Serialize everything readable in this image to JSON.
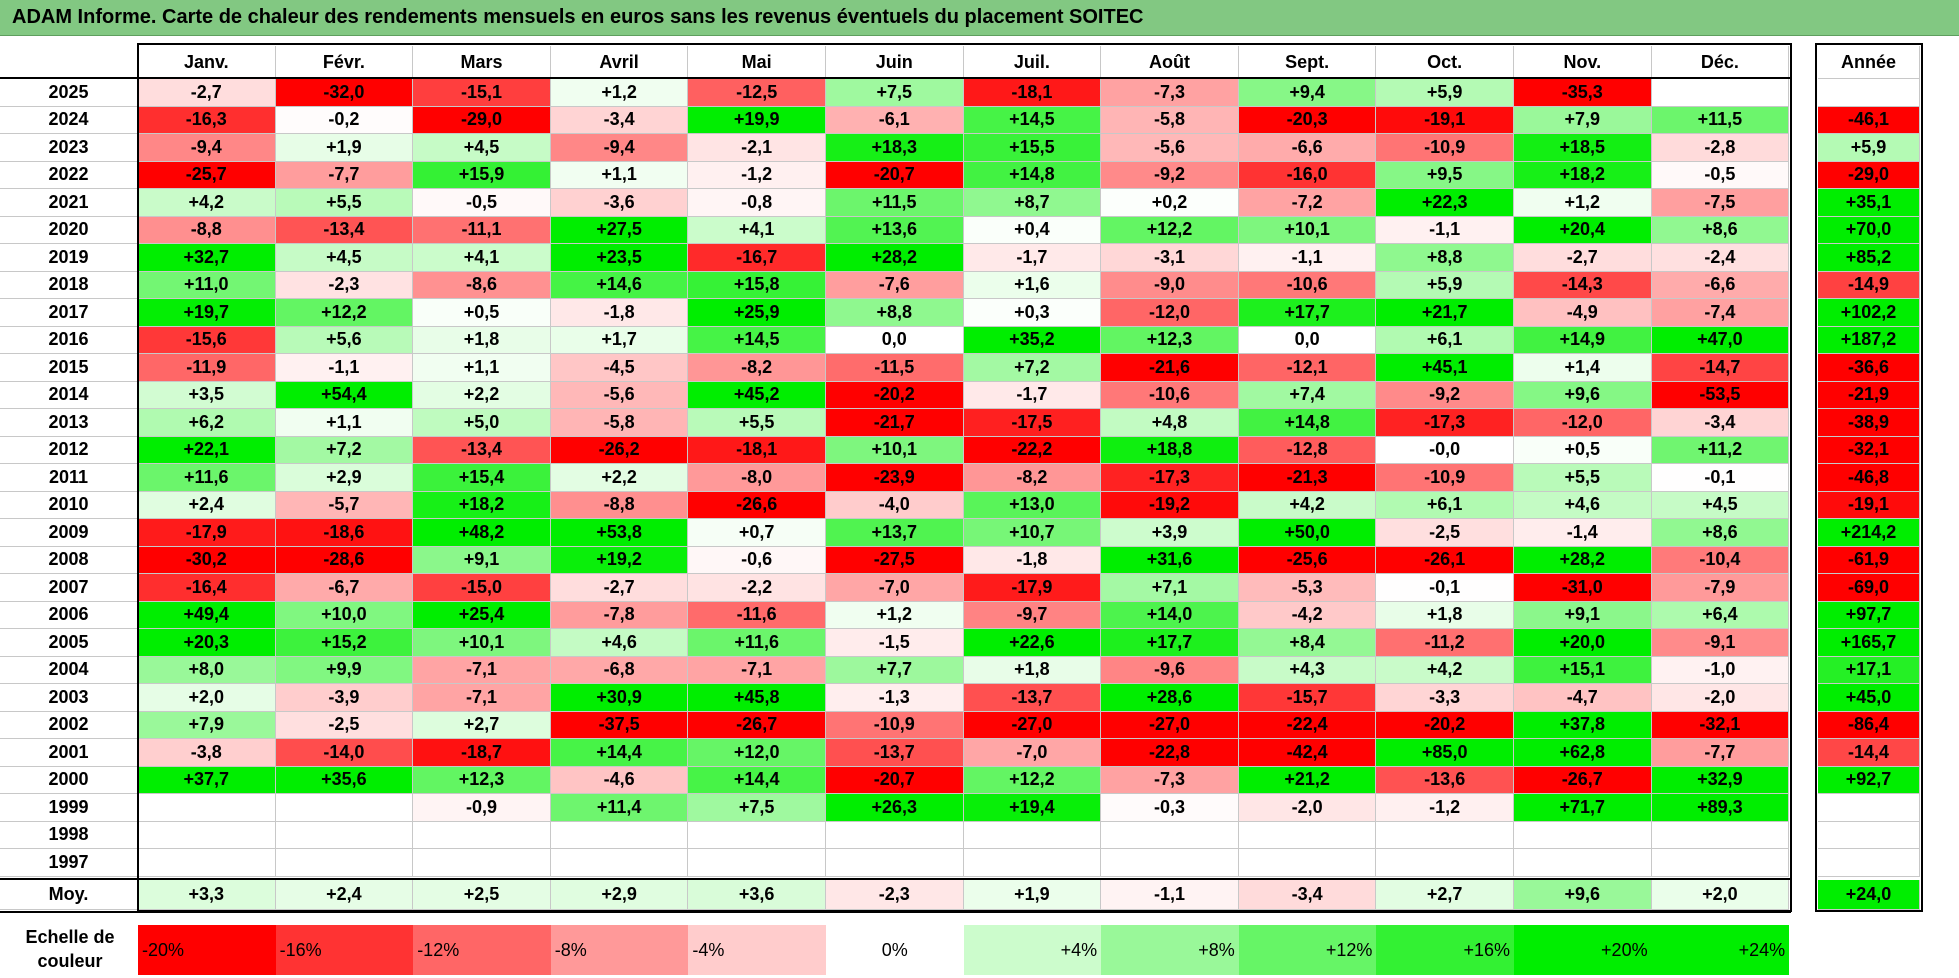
{
  "title": "ADAM Informe. Carte de chaleur des rendements mensuels en euros sans les revenus éventuels du placement SOITEC",
  "colors": {
    "title_bg": "#82c882",
    "neg_max": "#ff0000",
    "neutral": "#ffffff",
    "pos_max": "#00ee00"
  },
  "chart_data": {
    "type": "heatmap",
    "title": "ADAM Informe. Carte de chaleur des rendements mensuels en euros sans les revenus éventuels du placement SOITEC",
    "months": [
      "Janv.",
      "Févr.",
      "Mars",
      "Avril",
      "Mai",
      "Juin",
      "Juil.",
      "Août",
      "Sept.",
      "Oct.",
      "Nov.",
      "Déc."
    ],
    "annual_header": "Année",
    "rows": [
      {
        "year": "2025",
        "values": [
          "-2,7",
          "-32,0",
          "-15,1",
          "+1,2",
          "-12,5",
          "+7,5",
          "-18,1",
          "-7,3",
          "+9,4",
          "+5,9",
          "-35,3",
          ""
        ],
        "annual": ""
      },
      {
        "year": "2024",
        "values": [
          "-16,3",
          "-0,2",
          "-29,0",
          "-3,4",
          "+19,9",
          "-6,1",
          "+14,5",
          "-5,8",
          "-20,3",
          "-19,1",
          "+7,9",
          "+11,5"
        ],
        "annual": "-46,1"
      },
      {
        "year": "2023",
        "values": [
          "-9,4",
          "+1,9",
          "+4,5",
          "-9,4",
          "-2,1",
          "+18,3",
          "+15,5",
          "-5,6",
          "-6,6",
          "-10,9",
          "+18,5",
          "-2,8"
        ],
        "annual": "+5,9"
      },
      {
        "year": "2022",
        "values": [
          "-25,7",
          "-7,7",
          "+15,9",
          "+1,1",
          "-1,2",
          "-20,7",
          "+14,8",
          "-9,2",
          "-16,0",
          "+9,5",
          "+18,2",
          "-0,5"
        ],
        "annual": "-29,0"
      },
      {
        "year": "2021",
        "values": [
          "+4,2",
          "+5,5",
          "-0,5",
          "-3,6",
          "-0,8",
          "+11,5",
          "+8,7",
          "+0,2",
          "-7,2",
          "+22,3",
          "+1,2",
          "-7,5"
        ],
        "annual": "+35,1"
      },
      {
        "year": "2020",
        "values": [
          "-8,8",
          "-13,4",
          "-11,1",
          "+27,5",
          "+4,1",
          "+13,6",
          "+0,4",
          "+12,2",
          "+10,1",
          "-1,1",
          "+20,4",
          "+8,6"
        ],
        "annual": "+70,0"
      },
      {
        "year": "2019",
        "values": [
          "+32,7",
          "+4,5",
          "+4,1",
          "+23,5",
          "-16,7",
          "+28,2",
          "-1,7",
          "-3,1",
          "-1,1",
          "+8,8",
          "-2,7",
          "-2,4"
        ],
        "annual": "+85,2"
      },
      {
        "year": "2018",
        "values": [
          "+11,0",
          "-2,3",
          "-8,6",
          "+14,6",
          "+15,8",
          "-7,6",
          "+1,6",
          "-9,0",
          "-10,6",
          "+5,9",
          "-14,3",
          "-6,6"
        ],
        "annual": "-14,9"
      },
      {
        "year": "2017",
        "values": [
          "+19,7",
          "+12,2",
          "+0,5",
          "-1,8",
          "+25,9",
          "+8,8",
          "+0,3",
          "-12,0",
          "+17,7",
          "+21,7",
          "-4,9",
          "-7,4"
        ],
        "annual": "+102,2"
      },
      {
        "year": "2016",
        "values": [
          "-15,6",
          "+5,6",
          "+1,8",
          "+1,7",
          "+14,5",
          "0,0",
          "+35,2",
          "+12,3",
          "0,0",
          "+6,1",
          "+14,9",
          "+47,0"
        ],
        "annual": "+187,2"
      },
      {
        "year": "2015",
        "values": [
          "-11,9",
          "-1,1",
          "+1,1",
          "-4,5",
          "-8,2",
          "-11,5",
          "+7,2",
          "-21,6",
          "-12,1",
          "+45,1",
          "+1,4",
          "-14,7"
        ],
        "annual": "-36,6"
      },
      {
        "year": "2014",
        "values": [
          "+3,5",
          "+54,4",
          "+2,2",
          "-5,6",
          "+45,2",
          "-20,2",
          "-1,7",
          "-10,6",
          "+7,4",
          "-9,2",
          "+9,6",
          "-53,5"
        ],
        "annual": "-21,9"
      },
      {
        "year": "2013",
        "values": [
          "+6,2",
          "+1,1",
          "+5,0",
          "-5,8",
          "+5,5",
          "-21,7",
          "-17,5",
          "+4,8",
          "+14,8",
          "-17,3",
          "-12,0",
          "-3,4"
        ],
        "annual": "-38,9"
      },
      {
        "year": "2012",
        "values": [
          "+22,1",
          "+7,2",
          "-13,4",
          "-26,2",
          "-18,1",
          "+10,1",
          "-22,2",
          "+18,8",
          "-12,8",
          "-0,0",
          "+0,5",
          "+11,2"
        ],
        "annual": "-32,1"
      },
      {
        "year": "2011",
        "values": [
          "+11,6",
          "+2,9",
          "+15,4",
          "+2,2",
          "-8,0",
          "-23,9",
          "-8,2",
          "-17,3",
          "-21,3",
          "-10,9",
          "+5,5",
          "-0,1"
        ],
        "annual": "-46,8"
      },
      {
        "year": "2010",
        "values": [
          "+2,4",
          "-5,7",
          "+18,2",
          "-8,8",
          "-26,6",
          "-4,0",
          "+13,0",
          "-19,2",
          "+4,2",
          "+6,1",
          "+4,6",
          "+4,5"
        ],
        "annual": "-19,1"
      },
      {
        "year": "2009",
        "values": [
          "-17,9",
          "-18,6",
          "+48,2",
          "+53,8",
          "+0,7",
          "+13,7",
          "+10,7",
          "+3,9",
          "+50,0",
          "-2,5",
          "-1,4",
          "+8,6"
        ],
        "annual": "+214,2"
      },
      {
        "year": "2008",
        "values": [
          "-30,2",
          "-28,6",
          "+9,1",
          "+19,2",
          "-0,6",
          "-27,5",
          "-1,8",
          "+31,6",
          "-25,6",
          "-26,1",
          "+28,2",
          "-10,4"
        ],
        "annual": "-61,9"
      },
      {
        "year": "2007",
        "values": [
          "-16,4",
          "-6,7",
          "-15,0",
          "-2,7",
          "-2,2",
          "-7,0",
          "-17,9",
          "+7,1",
          "-5,3",
          "-0,1",
          "-31,0",
          "-7,9"
        ],
        "annual": "-69,0"
      },
      {
        "year": "2006",
        "values": [
          "+49,4",
          "+10,0",
          "+25,4",
          "-7,8",
          "-11,6",
          "+1,2",
          "-9,7",
          "+14,0",
          "-4,2",
          "+1,8",
          "+9,1",
          "+6,4"
        ],
        "annual": "+97,7"
      },
      {
        "year": "2005",
        "values": [
          "+20,3",
          "+15,2",
          "+10,1",
          "+4,6",
          "+11,6",
          "-1,5",
          "+22,6",
          "+17,7",
          "+8,4",
          "-11,2",
          "+20,0",
          "-9,1"
        ],
        "annual": "+165,7"
      },
      {
        "year": "2004",
        "values": [
          "+8,0",
          "+9,9",
          "-7,1",
          "-6,8",
          "-7,1",
          "+7,7",
          "+1,8",
          "-9,6",
          "+4,3",
          "+4,2",
          "+15,1",
          "-1,0"
        ],
        "annual": "+17,1"
      },
      {
        "year": "2003",
        "values": [
          "+2,0",
          "-3,9",
          "-7,1",
          "+30,9",
          "+45,8",
          "-1,3",
          "-13,7",
          "+28,6",
          "-15,7",
          "-3,3",
          "-4,7",
          "-2,0"
        ],
        "annual": "+45,0"
      },
      {
        "year": "2002",
        "values": [
          "+7,9",
          "-2,5",
          "+2,7",
          "-37,5",
          "-26,7",
          "-10,9",
          "-27,0",
          "-27,0",
          "-22,4",
          "-20,2",
          "+37,8",
          "-32,1"
        ],
        "annual": "-86,4"
      },
      {
        "year": "2001",
        "values": [
          "-3,8",
          "-14,0",
          "-18,7",
          "+14,4",
          "+12,0",
          "-13,7",
          "-7,0",
          "-22,8",
          "-42,4",
          "+85,0",
          "+62,8",
          "-7,7"
        ],
        "annual": "-14,4"
      },
      {
        "year": "2000",
        "values": [
          "+37,7",
          "+35,6",
          "+12,3",
          "-4,6",
          "+14,4",
          "-20,7",
          "+12,2",
          "-7,3",
          "+21,2",
          "-13,6",
          "-26,7",
          "+32,9"
        ],
        "annual": "+92,7"
      },
      {
        "year": "1999",
        "values": [
          "",
          "",
          "-0,9",
          "+11,4",
          "+7,5",
          "+26,3",
          "+19,4",
          "-0,3",
          "-2,0",
          "-1,2",
          "+71,7",
          "+89,3"
        ],
        "annual": ""
      },
      {
        "year": "1998",
        "values": [
          "",
          "",
          "",
          "",
          "",
          "",
          "",
          "",
          "",
          "",
          "",
          ""
        ],
        "annual": ""
      },
      {
        "year": "1997",
        "values": [
          "",
          "",
          "",
          "",
          "",
          "",
          "",
          "",
          "",
          "",
          "",
          ""
        ],
        "annual": ""
      }
    ],
    "average": {
      "label": "Moy.",
      "values": [
        "+3,3",
        "+2,4",
        "+2,5",
        "+2,9",
        "+3,6",
        "-2,3",
        "+1,9",
        "-1,1",
        "-3,4",
        "+2,7",
        "+9,6",
        "+2,0"
      ],
      "annual": "+24,0"
    },
    "scale": {
      "label": "Echelle de couleur",
      "entries": [
        {
          "text": "-20%",
          "value": -20,
          "align": "left"
        },
        {
          "text": "-16%",
          "value": -16,
          "align": "left"
        },
        {
          "text": "-12%",
          "value": -12,
          "align": "left"
        },
        {
          "text": "-8%",
          "value": -8,
          "align": "left"
        },
        {
          "text": "-4%",
          "value": -4,
          "align": "left"
        },
        {
          "text": "0%",
          "value": 0,
          "align": "center"
        },
        {
          "text": "+4%",
          "value": 4,
          "align": "right"
        },
        {
          "text": "+8%",
          "value": 8,
          "align": "right"
        },
        {
          "text": "+12%",
          "value": 12,
          "align": "right"
        },
        {
          "text": "+16%",
          "value": 16,
          "align": "right"
        },
        {
          "text": "+20%",
          "value": 20,
          "align": "right"
        },
        {
          "text": "+24%",
          "value": 24,
          "align": "right"
        }
      ]
    }
  }
}
